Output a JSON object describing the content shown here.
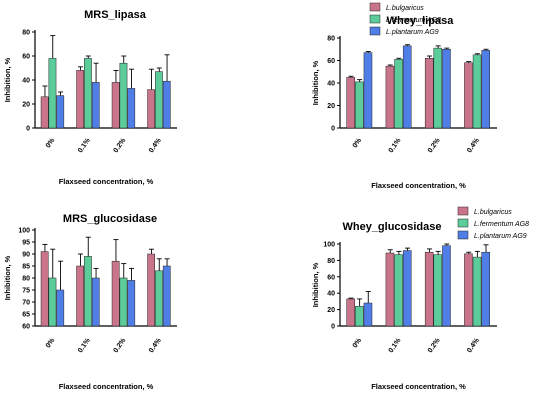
{
  "colors": {
    "L_bulgaricus": "#c9748a",
    "L_fermentum": "#5ccc9a",
    "L_plantarum": "#4f7ee6"
  },
  "chart_data": [
    {
      "type": "bar",
      "title": "MRS_lipasa",
      "xlabel": "Flaxseed concentration, %",
      "ylabel": "Inhibition, %",
      "ylim": [
        0,
        80
      ],
      "yticks": [
        0,
        20,
        40,
        60,
        80
      ],
      "categories": [
        "0%",
        "0.1%",
        "0.2%",
        "0.4%"
      ],
      "legend": "none",
      "series": [
        {
          "name": "L.bulgaricus",
          "values": [
            26,
            48,
            38,
            32
          ],
          "errors": [
            9,
            3,
            10,
            17
          ]
        },
        {
          "name": "L.fermentum AG8",
          "values": [
            58,
            58,
            54,
            47
          ],
          "errors": [
            19,
            2,
            6,
            3
          ]
        },
        {
          "name": "L.plantarum AG9",
          "values": [
            27,
            38,
            33,
            39
          ],
          "errors": [
            3,
            16,
            16,
            22
          ]
        }
      ]
    },
    {
      "type": "bar",
      "title": "Whey_lipasa",
      "xlabel": "Flaxseed concentration, %",
      "ylabel": "Inhibition, %",
      "ylim": [
        0,
        80
      ],
      "yticks": [
        0,
        20,
        40,
        60,
        80
      ],
      "categories": [
        "0%",
        "0.1%",
        "0.2%",
        "0.4%"
      ],
      "legend": "top-right",
      "series": [
        {
          "name": "L.bulgaricus",
          "values": [
            45,
            55,
            62,
            58
          ],
          "errors": [
            1,
            1,
            2,
            1
          ]
        },
        {
          "name": "L.fermentum AG8",
          "values": [
            41,
            61,
            71,
            65
          ],
          "errors": [
            2,
            1,
            2,
            1
          ]
        },
        {
          "name": "L.plantarum AG9",
          "values": [
            67,
            73,
            70,
            69
          ],
          "errors": [
            1,
            1,
            1,
            1
          ]
        }
      ]
    },
    {
      "type": "bar",
      "title": "MRS_glucosidase",
      "xlabel": "Flaxseed concentration, %",
      "ylabel": "Inhibition, %",
      "ylim": [
        60,
        100
      ],
      "yticks": [
        60,
        65,
        70,
        75,
        80,
        85,
        90,
        95,
        100
      ],
      "categories": [
        "0%",
        "0.1%",
        "0.2%",
        "0.4%"
      ],
      "legend": "none",
      "series": [
        {
          "name": "L.bulgaricus",
          "values": [
            91,
            85,
            87,
            90
          ],
          "errors": [
            3,
            5,
            9,
            2
          ]
        },
        {
          "name": "L.fermentum AG8",
          "values": [
            80,
            89,
            80,
            83
          ],
          "errors": [
            12,
            8,
            6,
            5
          ]
        },
        {
          "name": "L.plantarum AG9",
          "values": [
            75,
            80,
            79,
            85
          ],
          "errors": [
            12,
            4,
            5,
            3
          ]
        }
      ]
    },
    {
      "type": "bar",
      "title": "Whey_glucosidase",
      "xlabel": "Flaxseed concentration, %",
      "ylabel": "Inhibition, %",
      "ylim": [
        0,
        100
      ],
      "yticks": [
        0,
        20,
        40,
        60,
        80,
        100
      ],
      "categories": [
        "0%",
        "0.1%",
        "0.2%",
        "0.4%"
      ],
      "legend": "top-right",
      "series": [
        {
          "name": "L.bulgaricus",
          "values": [
            33,
            89,
            90,
            88
          ],
          "errors": [
            1,
            4,
            4,
            2
          ]
        },
        {
          "name": "L.fermentum AG8",
          "values": [
            24,
            87,
            87,
            84
          ],
          "errors": [
            9,
            4,
            4,
            7
          ]
        },
        {
          "name": "L.plantarum AG9",
          "values": [
            28,
            92,
            98,
            90
          ],
          "errors": [
            14,
            3,
            3,
            9
          ]
        }
      ]
    }
  ]
}
